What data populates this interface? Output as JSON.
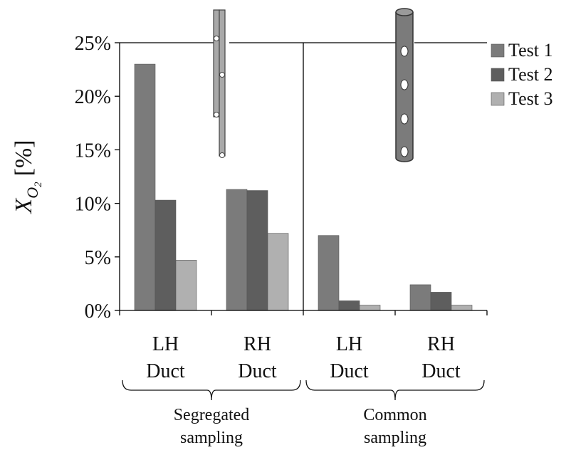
{
  "chart_data": {
    "type": "bar",
    "ylabel_main": "X",
    "ylabel_sub": "O",
    "ylabel_subsub": "2",
    "ylabel_unit": "[%]",
    "ylim": [
      0,
      25
    ],
    "ytick_values": [
      0,
      5,
      10,
      15,
      20,
      25
    ],
    "ytick_labels": [
      "0%",
      "5%",
      "10%",
      "15%",
      "20%",
      "25%"
    ],
    "grid": false,
    "legend_position": "right",
    "categories": [
      {
        "line1": "LH",
        "line2": "Duct"
      },
      {
        "line1": "RH",
        "line2": "Duct"
      },
      {
        "line1": "LH",
        "line2": "Duct"
      },
      {
        "line1": "RH",
        "line2": "Duct"
      }
    ],
    "groups": [
      {
        "line1": "Segregated",
        "line2": "sampling"
      },
      {
        "line1": "Common",
        "line2": "sampling"
      }
    ],
    "series": [
      {
        "name": "Test 1",
        "color": "#7b7b7b",
        "values": [
          23.0,
          11.3,
          7.0,
          2.4
        ]
      },
      {
        "name": "Test 2",
        "color": "#5e5e5e",
        "values": [
          10.3,
          11.2,
          0.9,
          1.7
        ]
      },
      {
        "name": "Test 3",
        "color": "#b0b0b0",
        "values": [
          4.7,
          7.2,
          0.5,
          0.5
        ]
      }
    ]
  }
}
